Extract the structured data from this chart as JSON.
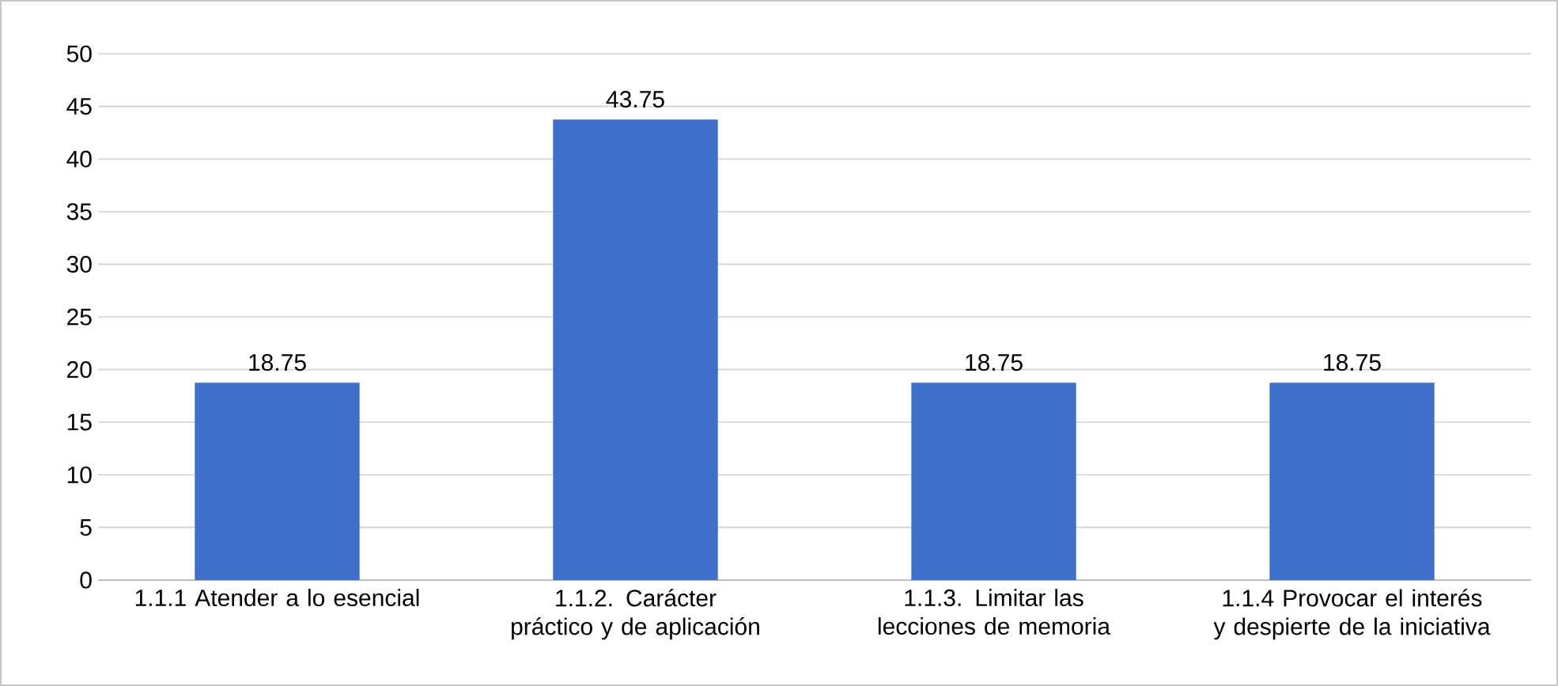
{
  "chart_data": {
    "type": "bar",
    "categories": [
      "1.1.1 Atender a lo esencial",
      "1.1.2. Carácter práctico y de aplicación",
      "1.1.3. Limitar las lecciones de memoria",
      "1.1.4 Provocar el interés y despierte de la iniciativa"
    ],
    "values": [
      18.75,
      43.75,
      18.75,
      18.75
    ],
    "color": "#3f6fc8",
    "ylim": [
      0,
      50
    ],
    "yticks": [
      0,
      5,
      10,
      15,
      20,
      25,
      30,
      35,
      40,
      45,
      50
    ],
    "grid": "y",
    "data_labels": true
  }
}
